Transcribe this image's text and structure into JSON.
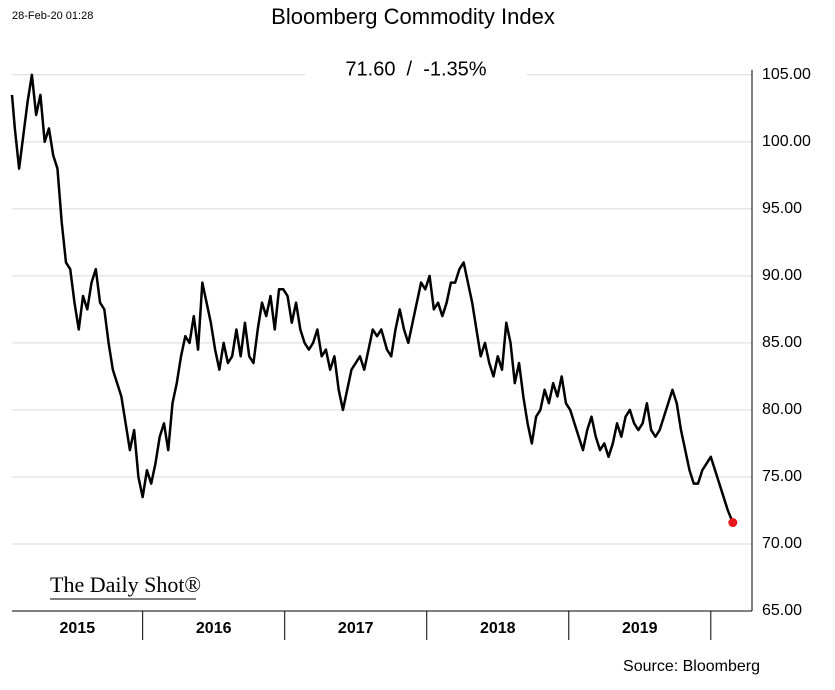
{
  "chart_data": {
    "type": "line",
    "timestamp": "28-Feb-20 01:28",
    "title": "Bloomberg Commodity Index",
    "annotation": "71.60  /  -1.35%",
    "logo": "The Daily Shot®",
    "source": "Source: Bloomberg",
    "grid": true,
    "xlim": [
      2015.08,
      2020.29
    ],
    "xticks": [
      2016,
      2017,
      2018,
      2019,
      2020
    ],
    "xlabels": [
      "2015",
      "2016",
      "2017",
      "2018",
      "2019"
    ],
    "ylim": [
      65,
      107
    ],
    "yticks": [
      {
        "value": 65,
        "label": "65.00"
      },
      {
        "value": 70,
        "label": "70.00"
      },
      {
        "value": 75,
        "label": "75.00"
      },
      {
        "value": 80,
        "label": "80.00"
      },
      {
        "value": 85,
        "label": "85.00"
      },
      {
        "value": 90,
        "label": "90.00"
      },
      {
        "value": 95,
        "label": "95.00"
      },
      {
        "value": 100,
        "label": "100.00"
      },
      {
        "value": 105,
        "label": "105.00"
      }
    ],
    "series": [
      {
        "name": "Bloomberg Commodity Index",
        "color": "#000000",
        "end_color": "#e8191c",
        "x": [
          2015.08,
          2015.1,
          2015.13,
          2015.16,
          2015.19,
          2015.22,
          2015.25,
          2015.28,
          2015.31,
          2015.34,
          2015.37,
          2015.4,
          2015.43,
          2015.46,
          2015.49,
          2015.52,
          2015.55,
          2015.58,
          2015.61,
          2015.64,
          2015.67,
          2015.7,
          2015.73,
          2015.76,
          2015.79,
          2015.82,
          2015.85,
          2015.88,
          2015.91,
          2015.94,
          2015.97,
          2016.0,
          2016.03,
          2016.06,
          2016.09,
          2016.12,
          2016.15,
          2016.18,
          2016.21,
          2016.24,
          2016.27,
          2016.3,
          2016.33,
          2016.36,
          2016.39,
          2016.42,
          2016.45,
          2016.48,
          2016.51,
          2016.54,
          2016.57,
          2016.6,
          2016.63,
          2016.66,
          2016.69,
          2016.72,
          2016.75,
          2016.78,
          2016.81,
          2016.84,
          2016.87,
          2016.9,
          2016.93,
          2016.96,
          2016.99,
          2017.02,
          2017.05,
          2017.08,
          2017.11,
          2017.14,
          2017.17,
          2017.2,
          2017.23,
          2017.26,
          2017.29,
          2017.32,
          2017.35,
          2017.38,
          2017.41,
          2017.44,
          2017.47,
          2017.5,
          2017.53,
          2017.56,
          2017.59,
          2017.62,
          2017.65,
          2017.68,
          2017.72,
          2017.75,
          2017.78,
          2017.81,
          2017.84,
          2017.87,
          2017.9,
          2017.93,
          2017.96,
          2017.99,
          2018.02,
          2018.05,
          2018.08,
          2018.11,
          2018.14,
          2018.17,
          2018.2,
          2018.23,
          2018.26,
          2018.29,
          2018.32,
          2018.35,
          2018.38,
          2018.41,
          2018.44,
          2018.47,
          2018.5,
          2018.53,
          2018.56,
          2018.59,
          2018.62,
          2018.65,
          2018.68,
          2018.71,
          2018.74,
          2018.77,
          2018.8,
          2018.83,
          2018.86,
          2018.89,
          2018.92,
          2018.95,
          2018.98,
          2019.01,
          2019.04,
          2019.07,
          2019.1,
          2019.13,
          2019.16,
          2019.19,
          2019.22,
          2019.25,
          2019.28,
          2019.31,
          2019.34,
          2019.37,
          2019.4,
          2019.43,
          2019.46,
          2019.49,
          2019.52,
          2019.55,
          2019.58,
          2019.61,
          2019.64,
          2019.67,
          2019.7,
          2019.73,
          2019.76,
          2019.79,
          2019.82,
          2019.85,
          2019.88,
          2019.91,
          2019.94,
          2019.97,
          2020.0,
          2020.03,
          2020.06,
          2020.09,
          2020.12,
          2020.155
        ],
        "values": [
          103.5,
          101,
          98,
          100.5,
          103,
          105,
          102,
          103.5,
          100,
          101,
          99,
          98,
          94,
          91,
          90.5,
          88,
          86,
          88.5,
          87.5,
          89.5,
          90.5,
          88,
          87.5,
          85,
          83,
          82,
          81,
          79,
          77,
          78.5,
          75,
          73.5,
          75.5,
          74.5,
          76,
          78,
          79,
          77,
          80.5,
          82,
          84,
          85.5,
          85,
          87,
          84.5,
          89.5,
          88,
          86.5,
          84.5,
          83,
          85,
          83.5,
          84,
          86,
          84,
          86.5,
          84,
          83.5,
          86,
          88,
          87,
          88.5,
          86,
          89,
          89,
          88.5,
          86.5,
          88,
          86,
          85,
          84.5,
          85,
          86,
          84,
          84.5,
          83,
          84,
          81.5,
          80,
          81.5,
          83,
          83.5,
          84,
          83,
          84.5,
          86,
          85.5,
          86,
          84.5,
          84,
          86,
          87.5,
          86,
          85,
          86.5,
          88,
          89.5,
          89,
          90,
          87.5,
          88,
          87,
          88,
          89.5,
          89.5,
          90.5,
          91,
          89.5,
          88,
          86,
          84,
          85,
          83.5,
          82.5,
          84,
          83,
          86.5,
          85,
          82,
          83.5,
          81,
          79,
          77.5,
          79.5,
          80,
          81.5,
          80.5,
          82,
          81,
          82.5,
          80.5,
          80,
          79,
          78,
          77,
          78.5,
          79.5,
          78,
          77,
          77.5,
          76.5,
          77.5,
          79,
          78,
          79.5,
          80,
          79,
          78.5,
          79,
          80.5,
          78.5,
          78,
          78.5,
          79.5,
          80.5,
          81.5,
          80.5,
          78.5,
          77,
          75.5,
          74.5,
          74.5,
          75.5,
          76,
          76.5,
          75.5,
          74.5,
          73.5,
          72.5,
          71.6
        ]
      }
    ]
  }
}
